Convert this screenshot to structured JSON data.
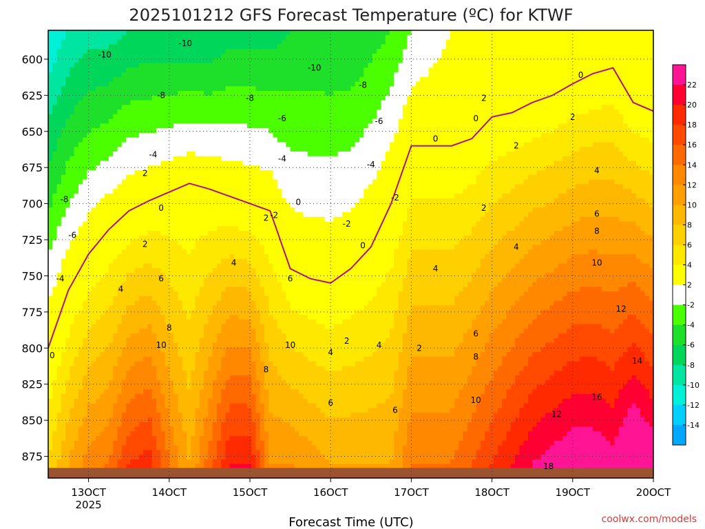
{
  "chart_data": {
    "type": "heatmap",
    "title": "2025101212 GFS Forecast Temperature (ºC) for KTWF",
    "xlabel": "Forecast Time (UTC)",
    "ylabel": "",
    "watermark": "coolwx.com/models",
    "x_ticks": [
      {
        "value": 13,
        "label": "13OCT",
        "sublabel": "2025"
      },
      {
        "value": 14,
        "label": "14OCT",
        "sublabel": ""
      },
      {
        "value": 15,
        "label": "15OCT",
        "sublabel": ""
      },
      {
        "value": 16,
        "label": "16OCT",
        "sublabel": ""
      },
      {
        "value": 17,
        "label": "17OCT",
        "sublabel": ""
      },
      {
        "value": 18,
        "label": "18OCT",
        "sublabel": ""
      },
      {
        "value": 19,
        "label": "19OCT",
        "sublabel": ""
      },
      {
        "value": 20,
        "label": "20OCT",
        "sublabel": ""
      }
    ],
    "xlim": [
      12.5,
      20
    ],
    "y_ticks": [
      600,
      625,
      650,
      675,
      700,
      725,
      750,
      775,
      800,
      825,
      850,
      875
    ],
    "ylim": [
      580,
      890
    ],
    "y_reversed": true,
    "grid": true,
    "colorbar": {
      "levels": [
        22,
        20,
        18,
        16,
        14,
        12,
        10,
        8,
        6,
        4,
        2,
        -2,
        -4,
        -6,
        -8,
        -10,
        -12,
        -14
      ],
      "colors": [
        "#ff1493",
        "#ff0033",
        "#ff2a00",
        "#ff4a00",
        "#ff6a00",
        "#ff8800",
        "#ffa000",
        "#ffb800",
        "#ffd000",
        "#ffe800",
        "#ffff00",
        "#ffffff",
        "#4cff00",
        "#1ee02a",
        "#00d65a",
        "#00e6a0",
        "#00f0d8",
        "#00d0ff",
        "#00a8ff"
      ]
    },
    "profiles": {
      "x": [
        12.5,
        12.75,
        13,
        13.25,
        13.5,
        13.75,
        14,
        14.25,
        14.5,
        14.75,
        15,
        15.25,
        15.5,
        15.75,
        16,
        16.25,
        16.5,
        16.75,
        17,
        17.25,
        17.5,
        17.75,
        18,
        18.25,
        18.5,
        18.75,
        19,
        19.25,
        19.5,
        19.75,
        20
      ],
      "freezing_level_hPa": [
        800,
        760,
        735,
        718,
        705,
        698,
        692,
        686,
        690,
        695,
        700,
        705,
        745,
        752,
        755,
        745,
        730,
        700,
        660,
        660,
        660,
        655,
        640,
        637,
        630,
        625,
        617,
        610,
        606,
        630,
        636
      ],
      "t_top_C": [
        -14,
        -12,
        -11,
        -11,
        -10,
        -10,
        -10,
        -10,
        -10,
        -9,
        -9,
        -9,
        -8,
        -8,
        -8,
        -8,
        -7,
        -6,
        -4,
        -3,
        -2,
        -1,
        0,
        0,
        0,
        0,
        0,
        0,
        0,
        -1,
        -2
      ],
      "t_sfc_C": [
        4,
        8,
        11,
        12,
        16,
        17,
        12,
        8,
        13,
        18,
        18,
        10,
        10,
        9,
        8,
        8,
        8,
        8,
        12,
        12,
        12,
        14,
        16,
        18,
        20,
        21,
        22,
        22,
        21,
        24,
        22
      ]
    },
    "contour_labels": [
      {
        "text": "-10",
        "x": 13.2,
        "y": 597
      },
      {
        "text": "-10",
        "x": 14.2,
        "y": 589
      },
      {
        "text": "-10",
        "x": 15.8,
        "y": 606
      },
      {
        "text": "-8",
        "x": 13.9,
        "y": 625
      },
      {
        "text": "-8",
        "x": 15.0,
        "y": 627
      },
      {
        "text": "-8",
        "x": 16.4,
        "y": 618
      },
      {
        "text": "-6",
        "x": 15.4,
        "y": 641
      },
      {
        "text": "-6",
        "x": 16.6,
        "y": 643
      },
      {
        "text": "-4",
        "x": 13.8,
        "y": 666
      },
      {
        "text": "-4",
        "x": 15.4,
        "y": 669
      },
      {
        "text": "-4",
        "x": 16.5,
        "y": 673
      },
      {
        "text": "-2",
        "x": 15.3,
        "y": 708
      },
      {
        "text": "-2",
        "x": 16.2,
        "y": 714
      },
      {
        "text": "-2",
        "x": 16.8,
        "y": 696
      },
      {
        "text": "-8",
        "x": 12.7,
        "y": 697
      },
      {
        "text": "-6",
        "x": 12.8,
        "y": 722
      },
      {
        "text": "-4",
        "x": 12.65,
        "y": 752
      },
      {
        "text": "2",
        "x": 13.7,
        "y": 679
      },
      {
        "text": "0",
        "x": 13.9,
        "y": 703
      },
      {
        "text": "0",
        "x": 15.6,
        "y": 699
      },
      {
        "text": "0",
        "x": 16.4,
        "y": 729
      },
      {
        "text": "0",
        "x": 17.3,
        "y": 655
      },
      {
        "text": "0",
        "x": 17.8,
        "y": 641
      },
      {
        "text": "0",
        "x": 19.1,
        "y": 611
      },
      {
        "text": "2",
        "x": 17.9,
        "y": 627
      },
      {
        "text": "2",
        "x": 18.3,
        "y": 660
      },
      {
        "text": "2",
        "x": 19.0,
        "y": 640
      },
      {
        "text": "2",
        "x": 13.7,
        "y": 728
      },
      {
        "text": "2",
        "x": 15.2,
        "y": 710
      },
      {
        "text": "2",
        "x": 16.2,
        "y": 795
      },
      {
        "text": "2",
        "x": 17.1,
        "y": 800
      },
      {
        "text": "2",
        "x": 17.9,
        "y": 703
      },
      {
        "text": "4",
        "x": 13.4,
        "y": 759
      },
      {
        "text": "4",
        "x": 14.8,
        "y": 741
      },
      {
        "text": "4",
        "x": 16.0,
        "y": 803
      },
      {
        "text": "4",
        "x": 16.6,
        "y": 798
      },
      {
        "text": "4",
        "x": 17.3,
        "y": 745
      },
      {
        "text": "4",
        "x": 18.3,
        "y": 730
      },
      {
        "text": "4",
        "x": 19.3,
        "y": 677
      },
      {
        "text": "6",
        "x": 13.9,
        "y": 752
      },
      {
        "text": "6",
        "x": 15.5,
        "y": 752
      },
      {
        "text": "6",
        "x": 16.0,
        "y": 838
      },
      {
        "text": "6",
        "x": 16.8,
        "y": 843
      },
      {
        "text": "6",
        "x": 17.8,
        "y": 790
      },
      {
        "text": "6",
        "x": 19.3,
        "y": 707
      },
      {
        "text": "8",
        "x": 14.0,
        "y": 786
      },
      {
        "text": "8",
        "x": 15.2,
        "y": 815
      },
      {
        "text": "8",
        "x": 17.8,
        "y": 806
      },
      {
        "text": "8",
        "x": 19.3,
        "y": 719
      },
      {
        "text": "10",
        "x": 13.9,
        "y": 798
      },
      {
        "text": "10",
        "x": 15.5,
        "y": 798
      },
      {
        "text": "10",
        "x": 17.8,
        "y": 836
      },
      {
        "text": "10",
        "x": 19.3,
        "y": 741
      },
      {
        "text": "12",
        "x": 18.8,
        "y": 846
      },
      {
        "text": "12",
        "x": 19.6,
        "y": 773
      },
      {
        "text": "14",
        "x": 19.8,
        "y": 809
      },
      {
        "text": "16",
        "x": 19.3,
        "y": 834
      },
      {
        "text": "18",
        "x": 18.7,
        "y": 882
      },
      {
        "text": "0",
        "x": 12.55,
        "y": 805
      }
    ]
  }
}
